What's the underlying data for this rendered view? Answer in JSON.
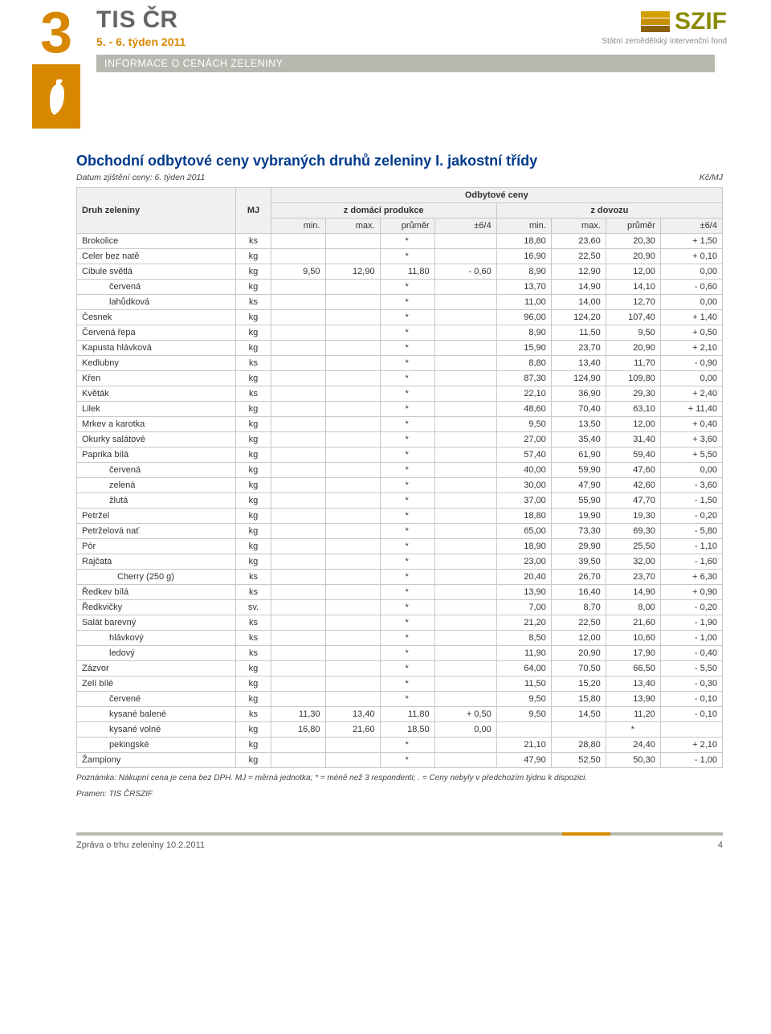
{
  "header": {
    "page_number": "3",
    "tis_label": "TIS",
    "cr_label": "ČR",
    "week": "5. - 6. týden 2011",
    "info_bar": "INFORMACE O CENÁCH ZELENINY",
    "szif_text": "SZIF",
    "szif_sub": "Státní zemědělský intervenční fond"
  },
  "title": "Obchodní odbytové ceny vybraných druhů zeleniny I. jakostní třídy",
  "date_note": "Datum zjištění ceny: 6. týden 2011",
  "unit_note": "Kč/MJ",
  "table": {
    "col_druh": "Druh zeleniny",
    "col_mj": "MJ",
    "col_odbytove": "Odbytové ceny",
    "col_domaci": "z domácí produkce",
    "col_dovoz": "z dovozu",
    "col_min": "min.",
    "col_max": "max.",
    "col_prumer": "průměr",
    "col_delta": "±6/4",
    "rows": [
      {
        "name": "Brokolice",
        "indent": 0,
        "mj": "ks",
        "d": [
          "",
          "",
          "*",
          ""
        ],
        "i": [
          "18,80",
          "23,60",
          "20,30",
          "+ 1,50"
        ]
      },
      {
        "name": "Celer bez natě",
        "indent": 0,
        "mj": "kg",
        "d": [
          "",
          "",
          "*",
          ""
        ],
        "i": [
          "16,90",
          "22,50",
          "20,90",
          "+ 0,10"
        ]
      },
      {
        "name": "Cibule světlá",
        "indent": 0,
        "mj": "kg",
        "d": [
          "9,50",
          "12,90",
          "11,80",
          "- 0,60"
        ],
        "i": [
          "8,90",
          "12,90",
          "12,00",
          "0,00"
        ]
      },
      {
        "name": "červená",
        "indent": 1,
        "mj": "kg",
        "d": [
          "",
          "",
          "*",
          ""
        ],
        "i": [
          "13,70",
          "14,90",
          "14,10",
          "- 0,60"
        ]
      },
      {
        "name": "lahůdková",
        "indent": 1,
        "mj": "ks",
        "d": [
          "",
          "",
          "*",
          ""
        ],
        "i": [
          "11,00",
          "14,00",
          "12,70",
          "0,00"
        ]
      },
      {
        "name": "Česnek",
        "indent": 0,
        "mj": "kg",
        "d": [
          "",
          "",
          "*",
          ""
        ],
        "i": [
          "96,00",
          "124,20",
          "107,40",
          "+ 1,40"
        ]
      },
      {
        "name": "Červená řepa",
        "indent": 0,
        "mj": "kg",
        "d": [
          "",
          "",
          "*",
          ""
        ],
        "i": [
          "8,90",
          "11,50",
          "9,50",
          "+ 0,50"
        ]
      },
      {
        "name": "Kapusta hlávková",
        "indent": 0,
        "mj": "kg",
        "d": [
          "",
          "",
          "*",
          ""
        ],
        "i": [
          "15,90",
          "23,70",
          "20,90",
          "+ 2,10"
        ]
      },
      {
        "name": "Kedlubny",
        "indent": 0,
        "mj": "ks",
        "d": [
          "",
          "",
          "*",
          ""
        ],
        "i": [
          "8,80",
          "13,40",
          "11,70",
          "- 0,90"
        ]
      },
      {
        "name": "Křen",
        "indent": 0,
        "mj": "kg",
        "d": [
          "",
          "",
          "*",
          ""
        ],
        "i": [
          "87,30",
          "124,90",
          "109,80",
          "0,00"
        ]
      },
      {
        "name": "Květák",
        "indent": 0,
        "mj": "ks",
        "d": [
          "",
          "",
          "*",
          ""
        ],
        "i": [
          "22,10",
          "36,90",
          "29,30",
          "+ 2,40"
        ]
      },
      {
        "name": "Lilek",
        "indent": 0,
        "mj": "kg",
        "d": [
          "",
          "",
          "*",
          ""
        ],
        "i": [
          "48,60",
          "70,40",
          "63,10",
          "+ 11,40"
        ]
      },
      {
        "name": "Mrkev a karotka",
        "indent": 0,
        "mj": "kg",
        "d": [
          "",
          "",
          "*",
          ""
        ],
        "i": [
          "9,50",
          "13,50",
          "12,00",
          "+ 0,40"
        ]
      },
      {
        "name": "Okurky salátové",
        "indent": 0,
        "mj": "kg",
        "d": [
          "",
          "",
          "*",
          ""
        ],
        "i": [
          "27,00",
          "35,40",
          "31,40",
          "+ 3,60"
        ]
      },
      {
        "name": "Paprika bílá",
        "indent": 0,
        "mj": "kg",
        "d": [
          "",
          "",
          "*",
          ""
        ],
        "i": [
          "57,40",
          "61,90",
          "59,40",
          "+ 5,50"
        ]
      },
      {
        "name": "červená",
        "indent": 1,
        "mj": "kg",
        "d": [
          "",
          "",
          "*",
          ""
        ],
        "i": [
          "40,00",
          "59,90",
          "47,60",
          "0,00"
        ]
      },
      {
        "name": "zelená",
        "indent": 1,
        "mj": "kg",
        "d": [
          "",
          "",
          "*",
          ""
        ],
        "i": [
          "30,00",
          "47,90",
          "42,60",
          "- 3,60"
        ]
      },
      {
        "name": "žlutá",
        "indent": 1,
        "mj": "kg",
        "d": [
          "",
          "",
          "*",
          ""
        ],
        "i": [
          "37,00",
          "55,90",
          "47,70",
          "- 1,50"
        ]
      },
      {
        "name": "Petržel",
        "indent": 0,
        "mj": "kg",
        "d": [
          "",
          "",
          "*",
          ""
        ],
        "i": [
          "18,80",
          "19,90",
          "19,30",
          "- 0,20"
        ]
      },
      {
        "name": "Petrželová nať",
        "indent": 0,
        "mj": "kg",
        "d": [
          "",
          "",
          "*",
          ""
        ],
        "i": [
          "65,00",
          "73,30",
          "69,30",
          "- 5,80"
        ]
      },
      {
        "name": "Pór",
        "indent": 0,
        "mj": "kg",
        "d": [
          "",
          "",
          "*",
          ""
        ],
        "i": [
          "18,90",
          "29,90",
          "25,50",
          "- 1,10"
        ]
      },
      {
        "name": "Rajčata",
        "indent": 0,
        "mj": "kg",
        "d": [
          "",
          "",
          "*",
          ""
        ],
        "i": [
          "23,00",
          "39,50",
          "32,00",
          "- 1,60"
        ]
      },
      {
        "name": "Cherry (250 g)",
        "indent": 2,
        "mj": "ks",
        "d": [
          "",
          "",
          "*",
          ""
        ],
        "i": [
          "20,40",
          "26,70",
          "23,70",
          "+ 6,30"
        ]
      },
      {
        "name": "Ředkev bílá",
        "indent": 0,
        "mj": "ks",
        "d": [
          "",
          "",
          "*",
          ""
        ],
        "i": [
          "13,90",
          "16,40",
          "14,90",
          "+ 0,90"
        ]
      },
      {
        "name": "Ředkvičky",
        "indent": 0,
        "mj": "sv.",
        "d": [
          "",
          "",
          "*",
          ""
        ],
        "i": [
          "7,00",
          "8,70",
          "8,00",
          "- 0,20"
        ]
      },
      {
        "name": "Salát barevný",
        "indent": 0,
        "mj": "ks",
        "d": [
          "",
          "",
          "*",
          ""
        ],
        "i": [
          "21,20",
          "22,50",
          "21,60",
          "- 1,90"
        ]
      },
      {
        "name": "hlávkový",
        "indent": 1,
        "mj": "ks",
        "d": [
          "",
          "",
          "*",
          ""
        ],
        "i": [
          "8,50",
          "12,00",
          "10,60",
          "- 1,00"
        ]
      },
      {
        "name": "ledový",
        "indent": 1,
        "mj": "ks",
        "d": [
          "",
          "",
          "*",
          ""
        ],
        "i": [
          "11,90",
          "20,90",
          "17,90",
          "- 0,40"
        ]
      },
      {
        "name": "Zázvor",
        "indent": 0,
        "mj": "kg",
        "d": [
          "",
          "",
          "*",
          ""
        ],
        "i": [
          "64,00",
          "70,50",
          "66,50",
          "- 5,50"
        ]
      },
      {
        "name": "Zelí bílé",
        "indent": 0,
        "mj": "kg",
        "d": [
          "",
          "",
          "*",
          ""
        ],
        "i": [
          "11,50",
          "15,20",
          "13,40",
          "- 0,30"
        ]
      },
      {
        "name": "červené",
        "indent": 1,
        "mj": "kg",
        "d": [
          "",
          "",
          "*",
          ""
        ],
        "i": [
          "9,50",
          "15,80",
          "13,90",
          "- 0,10"
        ]
      },
      {
        "name": "kysané balené",
        "indent": 1,
        "mj": "ks",
        "d": [
          "11,30",
          "13,40",
          "11,80",
          "+ 0,50"
        ],
        "i": [
          "9,50",
          "14,50",
          "11,20",
          "- 0,10"
        ]
      },
      {
        "name": "kysané volné",
        "indent": 1,
        "mj": "kg",
        "d": [
          "16,80",
          "21,60",
          "18,50",
          "0,00"
        ],
        "i": [
          "",
          "",
          "*",
          ""
        ]
      },
      {
        "name": "pekingské",
        "indent": 1,
        "mj": "kg",
        "d": [
          "",
          "",
          "*",
          ""
        ],
        "i": [
          "21,10",
          "28,80",
          "24,40",
          "+ 2,10"
        ]
      },
      {
        "name": "Žampiony",
        "indent": 0,
        "mj": "kg",
        "d": [
          "",
          "",
          "*",
          ""
        ],
        "i": [
          "47,90",
          "52,50",
          "50,30",
          "- 1,00"
        ]
      }
    ]
  },
  "footnote1": "Poznámka: Nákupní cena je cena bez DPH. MJ = měrná jednotka; * = méně než 3 respondenti; . = Ceny nebyly v předchozím týdnu k dispozici.",
  "footnote2": "Pramen: TIS ČRSZIF",
  "footer": {
    "report": "Zpráva o trhu zeleniny 10.2.2011",
    "page": "4"
  }
}
